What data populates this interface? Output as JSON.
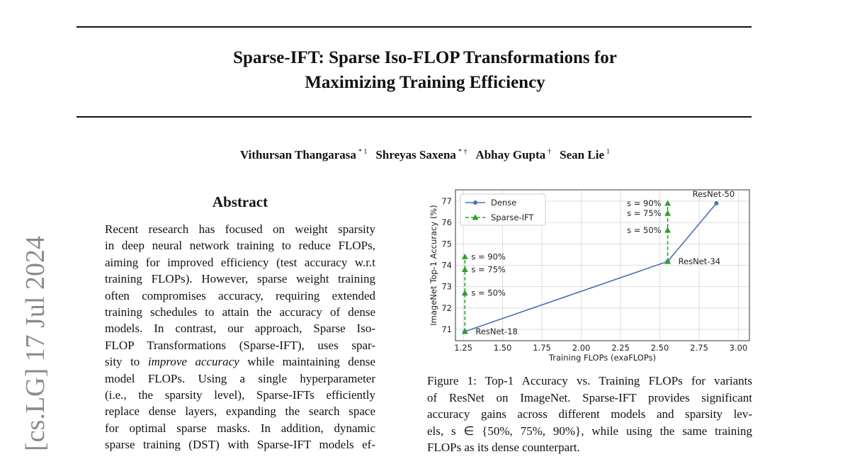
{
  "header": {
    "title_lines": [
      "Sparse-IFT: Sparse Iso-FLOP Transformations for",
      "Maximizing Training Efficiency"
    ]
  },
  "authors": [
    {
      "name": "Vithursan Thangarasa",
      "marks": "* 1"
    },
    {
      "name": "Shreyas Saxena",
      "marks": "* †"
    },
    {
      "name": "Abhay Gupta",
      "marks": "†"
    },
    {
      "name": "Sean Lie",
      "marks": "1"
    }
  ],
  "arxiv_stamp": "[cs.LG]  17 Jul 2024",
  "abstract": {
    "heading": "Abstract",
    "lines": [
      "Recent research has focused on weight sparsity",
      "in deep neural network training to reduce FLOPs,",
      "aiming for improved efficiency (test accuracy w.r.t",
      "training FLOPs). However, sparse weight training",
      "often compromises accuracy, requiring extended",
      "training schedules to attain the accuracy of dense",
      "models.  In contrast, our approach, Sparse Iso-",
      "FLOP Transformations (Sparse-IFT), uses spar-",
      [
        "sity to ",
        "improve accuracy",
        " while maintaining dense"
      ],
      "model FLOPs.  Using a single hyperparameter",
      "(i.e., the sparsity level), Sparse-IFTs efficiently",
      "replace dense layers, expanding the search space",
      "for optimal sparse masks. In addition, dynamic",
      "sparse training (DST) with Sparse-IFT models ef-"
    ]
  },
  "chart_data": {
    "type": "line",
    "x_label": "Training FLOPs (exaFLOPs)",
    "y_label": "ImageNet Top-1 Accuracy (%)",
    "xlim": [
      1.2,
      3.07
    ],
    "ylim": [
      70.47,
      77.53
    ],
    "xticks": [
      {
        "value": 1.25,
        "label": "1.25"
      },
      {
        "value": 1.5,
        "label": "1.50"
      },
      {
        "value": 1.75,
        "label": "1.75"
      },
      {
        "value": 2.0,
        "label": "2.00"
      },
      {
        "value": 2.25,
        "label": "2.25"
      },
      {
        "value": 2.5,
        "label": "2.50"
      },
      {
        "value": 2.75,
        "label": "2.75"
      },
      {
        "value": 3.0,
        "label": "3.00"
      }
    ],
    "yticks": [
      71,
      72,
      73,
      74,
      75,
      76,
      77
    ],
    "grid": true,
    "legend": "upper left",
    "series": [
      {
        "name": "Dense",
        "color": "#4c72b0",
        "marker": "circle",
        "dashed": false,
        "x": [
          1.26,
          2.55,
          2.86
        ],
        "values": [
          70.9,
          74.18,
          76.9
        ],
        "point_labels": [
          "ResNet-18",
          "ResNet-34",
          "ResNet-50"
        ]
      },
      {
        "name": "Sparse-IFT",
        "color": "#2ca02c",
        "marker": "triangle",
        "dashed": true,
        "x": [
          1.26,
          1.26,
          1.26,
          1.26,
          null,
          2.55,
          2.55,
          2.55,
          2.55
        ],
        "values": [
          70.9,
          72.7,
          73.8,
          74.4,
          null,
          74.18,
          75.64,
          76.43,
          76.9
        ],
        "point_labels": [
          null,
          "s = 50%",
          "s = 75%",
          "s = 90%",
          null,
          null,
          "s = 50%",
          "s = 75%",
          "s = 90%"
        ]
      }
    ]
  },
  "figure": {
    "caption_lines": [
      "Figure 1: Top-1 Accuracy vs. Training FLOPs for variants",
      "of ResNet on ImageNet. Sparse-IFT provides significant",
      "accuracy gains across different models and sparsity lev-",
      "els, s ∈ {50%, 75%, 90%}, while using the same training",
      "FLOPs as its dense counterpart."
    ]
  }
}
